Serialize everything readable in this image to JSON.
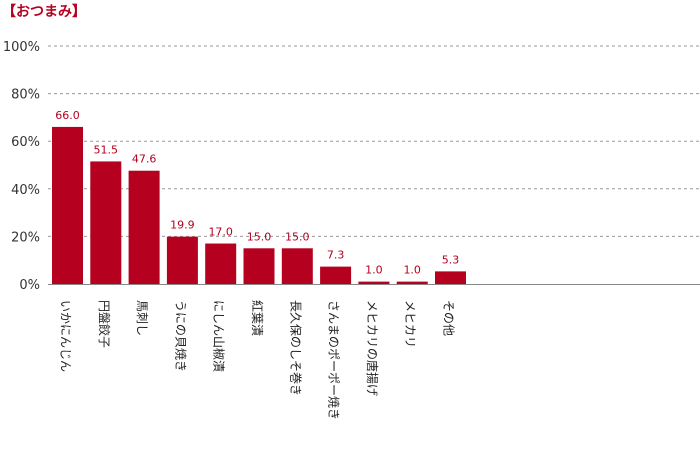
{
  "chart_data": {
    "type": "bar",
    "title": "【おつまみ】",
    "categories": [
      "いかにんじん",
      "円盤餃子",
      "馬刺し",
      "うにの貝焼き",
      "にしん山椒漬",
      "紅葉漬",
      "長久保のしそ巻き",
      "さんまのポーポー焼き",
      "メヒカリの唐揚げ",
      "メヒカリ",
      "その他"
    ],
    "values": [
      66.0,
      51.5,
      47.6,
      19.9,
      17.0,
      15.0,
      15.0,
      7.3,
      1.0,
      1.0,
      5.3
    ],
    "value_labels": [
      "66.0",
      "51.5",
      "47.6",
      "19.9",
      "17.0",
      "15.0",
      "15.0",
      "7.3",
      "1.0",
      "1.0",
      "5.3"
    ],
    "yticks": [
      "0%",
      "20%",
      "40%",
      "60%",
      "80%",
      "100%"
    ],
    "ylim": [
      0,
      100
    ],
    "xlabel": "",
    "ylabel": "",
    "grid": true,
    "bar_color": "#b5001f"
  }
}
